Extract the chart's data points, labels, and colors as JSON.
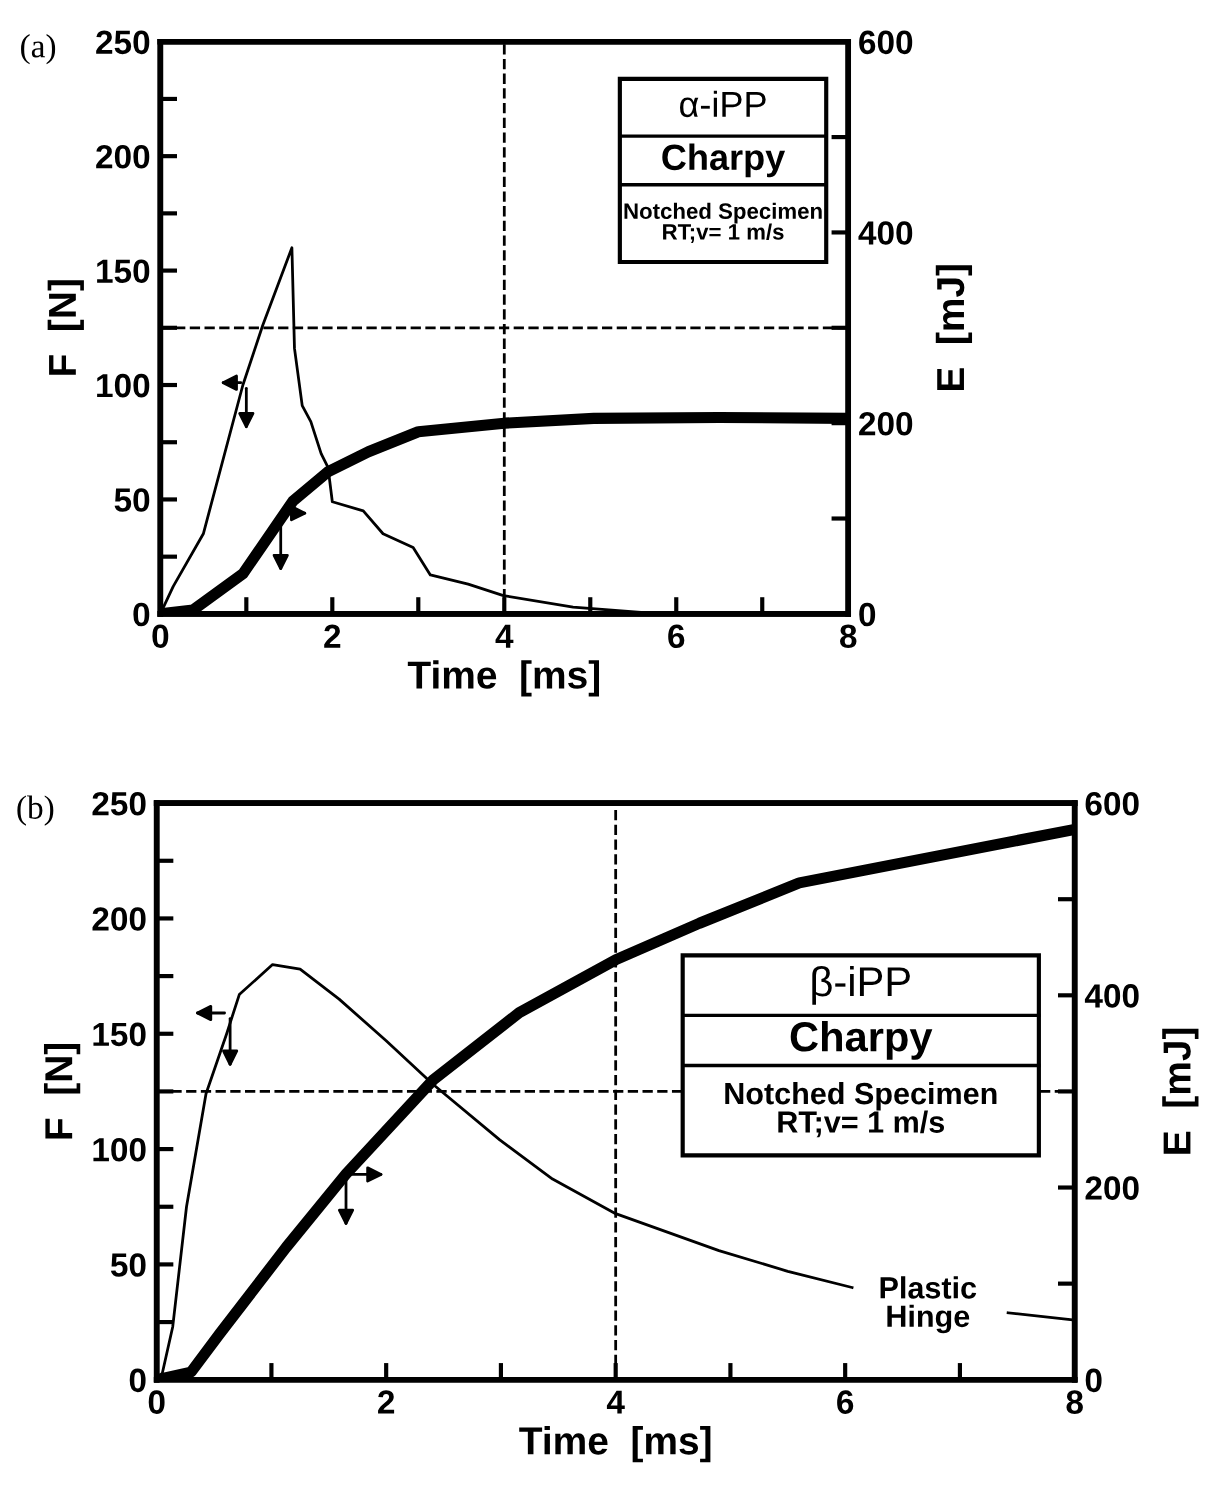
{
  "chart_data": [
    {
      "type": "line",
      "title": "(a)",
      "xlabel": "Time  [ms]",
      "ylabel": "F  [N]",
      "y2label": "E  [mJ]",
      "xlim": [
        0,
        8
      ],
      "xticks": [
        0,
        {
          "value": 1,
          "label": null
        },
        2,
        {
          "value": 3,
          "label": null
        },
        4,
        {
          "value": 5,
          "label": null
        },
        6,
        {
          "value": 7,
          "label": null
        },
        8
      ],
      "ylim": [
        0,
        250
      ],
      "yticks": [
        0,
        {
          "value": 25,
          "label": null
        },
        50,
        {
          "value": 75,
          "label": null
        },
        100,
        {
          "value": 125,
          "label": null
        },
        150,
        {
          "value": 175,
          "label": null
        },
        200,
        {
          "value": 225,
          "label": null
        },
        250
      ],
      "y2lim": [
        0,
        600
      ],
      "y2ticks": [
        0,
        {
          "value": 100,
          "label": null
        },
        200,
        {
          "value": 300,
          "label": null
        },
        400,
        {
          "value": 500,
          "label": null
        },
        600
      ],
      "grid": false,
      "legend": false,
      "line_style": "solid",
      "series": [
        {
          "color": "#000000",
          "axis": "y",
          "x": [
            0,
            0.15,
            0.5,
            0.96,
            1.19,
            1.53,
            1.56,
            1.65,
            1.75,
            1.87,
            1.95,
            2.0,
            2.36,
            2.59,
            2.94,
            3.14,
            3.58,
            3.99,
            4.8,
            5.8
          ],
          "values": [
            0,
            12,
            35,
            100,
            126,
            160,
            116,
            91,
            84,
            70,
            64,
            49,
            45,
            35,
            29,
            17,
            13,
            8,
            3,
            0
          ]
        },
        {
          "color": "#000000",
          "axis": "y2",
          "x": [
            0,
            0.38,
            0.96,
            1.54,
            1.95,
            2.42,
            3.0,
            4.0,
            5.04,
            6.5,
            8.0
          ],
          "values": [
            0,
            4,
            42,
            118,
            149,
            170,
            191,
            200,
            205,
            206,
            205
          ]
        }
      ],
      "ref_lines": [
        {
          "axis": "x",
          "value": 4,
          "line_style": "dashed"
        },
        {
          "axis": "y",
          "value": 125,
          "line_style": "dashed"
        }
      ],
      "annotations": [
        "α-iPP",
        "Charpy",
        "Notched Specimen\nRT;v= 1 m/s"
      ]
    },
    {
      "type": "line",
      "title": "(b)",
      "xlabel": "Time  [ms]",
      "ylabel": "F  [N]",
      "y2label": "E  [mJ]",
      "xlim": [
        0,
        8
      ],
      "xticks": [
        0,
        {
          "value": 1,
          "label": null
        },
        2,
        {
          "value": 3,
          "label": null
        },
        4,
        {
          "value": 5,
          "label": null
        },
        6,
        {
          "value": 7,
          "label": null
        },
        8
      ],
      "ylim": [
        0,
        250
      ],
      "yticks": [
        0,
        {
          "value": 25,
          "label": null
        },
        50,
        {
          "value": 75,
          "label": null
        },
        100,
        {
          "value": 125,
          "label": null
        },
        150,
        {
          "value": 175,
          "label": null
        },
        200,
        {
          "value": 225,
          "label": null
        },
        250
      ],
      "y2lim": [
        0,
        600
      ],
      "y2ticks": [
        0,
        {
          "value": 100,
          "label": null
        },
        200,
        {
          "value": 300,
          "label": null
        },
        400,
        {
          "value": 500,
          "label": null
        },
        600
      ],
      "grid": false,
      "legend": false,
      "line_style": "solid",
      "series": [
        {
          "color": "#000000",
          "axis": "y",
          "x": [
            0,
            0.05,
            0.14,
            0.26,
            0.43,
            0.61,
            0.72,
            1.01,
            1.25,
            1.59,
            2.0,
            2.41,
            2.99,
            3.45,
            4.0,
            4.9,
            5.5,
            6.06,
            6.7,
            7.42,
            7.97
          ],
          "values": [
            0,
            3,
            23,
            75,
            124,
            150,
            167,
            180,
            178,
            165,
            147,
            128,
            104,
            87,
            72,
            56,
            47,
            40,
            null,
            29,
            26
          ]
        },
        {
          "color": "#000000",
          "axis": "y2",
          "x": [
            0,
            0.3,
            0.55,
            1.13,
            1.65,
            2.41,
            3.16,
            4.0,
            4.73,
            5.6,
            7.97
          ],
          "values": [
            0,
            8,
            48,
            138,
            214,
            312,
            382,
            437,
            475,
            517,
            572
          ]
        }
      ],
      "ref_lines": [
        {
          "axis": "x",
          "value": 4,
          "line_style": "dashed"
        },
        {
          "axis": "y",
          "value": 125,
          "line_style": "dashed"
        }
      ],
      "annotations": [
        "β-iPP",
        "Charpy",
        "Notched Specimen\nRT;v= 1 m/s",
        "Plastic\nHinge"
      ]
    }
  ]
}
